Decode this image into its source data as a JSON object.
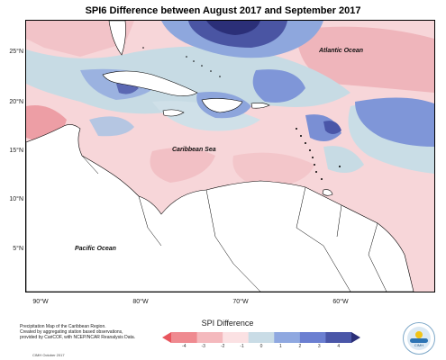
{
  "title": "SPI6 Difference between August 2017 and September 2017",
  "map_labels": {
    "atlantic": "Atlantic Ocean",
    "caribbean": "Caribbean Sea",
    "pacific": "Pacific Ocean"
  },
  "latitude_ticks": [
    "25°N",
    "20°N",
    "15°N",
    "10°N",
    "5°N"
  ],
  "longitude_ticks": [
    "90°W",
    "80°W",
    "70°W",
    "60°W"
  ],
  "legend": {
    "title": "SPI Difference",
    "ticks": [
      "-4",
      "-3",
      "-2",
      "-1",
      "0",
      "1",
      "2",
      "3",
      "4"
    ],
    "colors": [
      "#e8565e",
      "#ef8a90",
      "#f4b9bd",
      "#fbe1e3",
      "#c9dce6",
      "#8fa8e0",
      "#6b7fd1",
      "#4a56a8",
      "#2b2f78"
    ]
  },
  "caption_lines": [
    "Precipitation Map of the Caribbean Region.",
    "Created by aggregating station based observations,",
    "provided by CariCOF, with NCEP/NCAR Reanalysis Data."
  ],
  "credit": "CIMH October 2017",
  "logo": {
    "icon": "cimh-logo-icon",
    "text": "CIMH"
  }
}
